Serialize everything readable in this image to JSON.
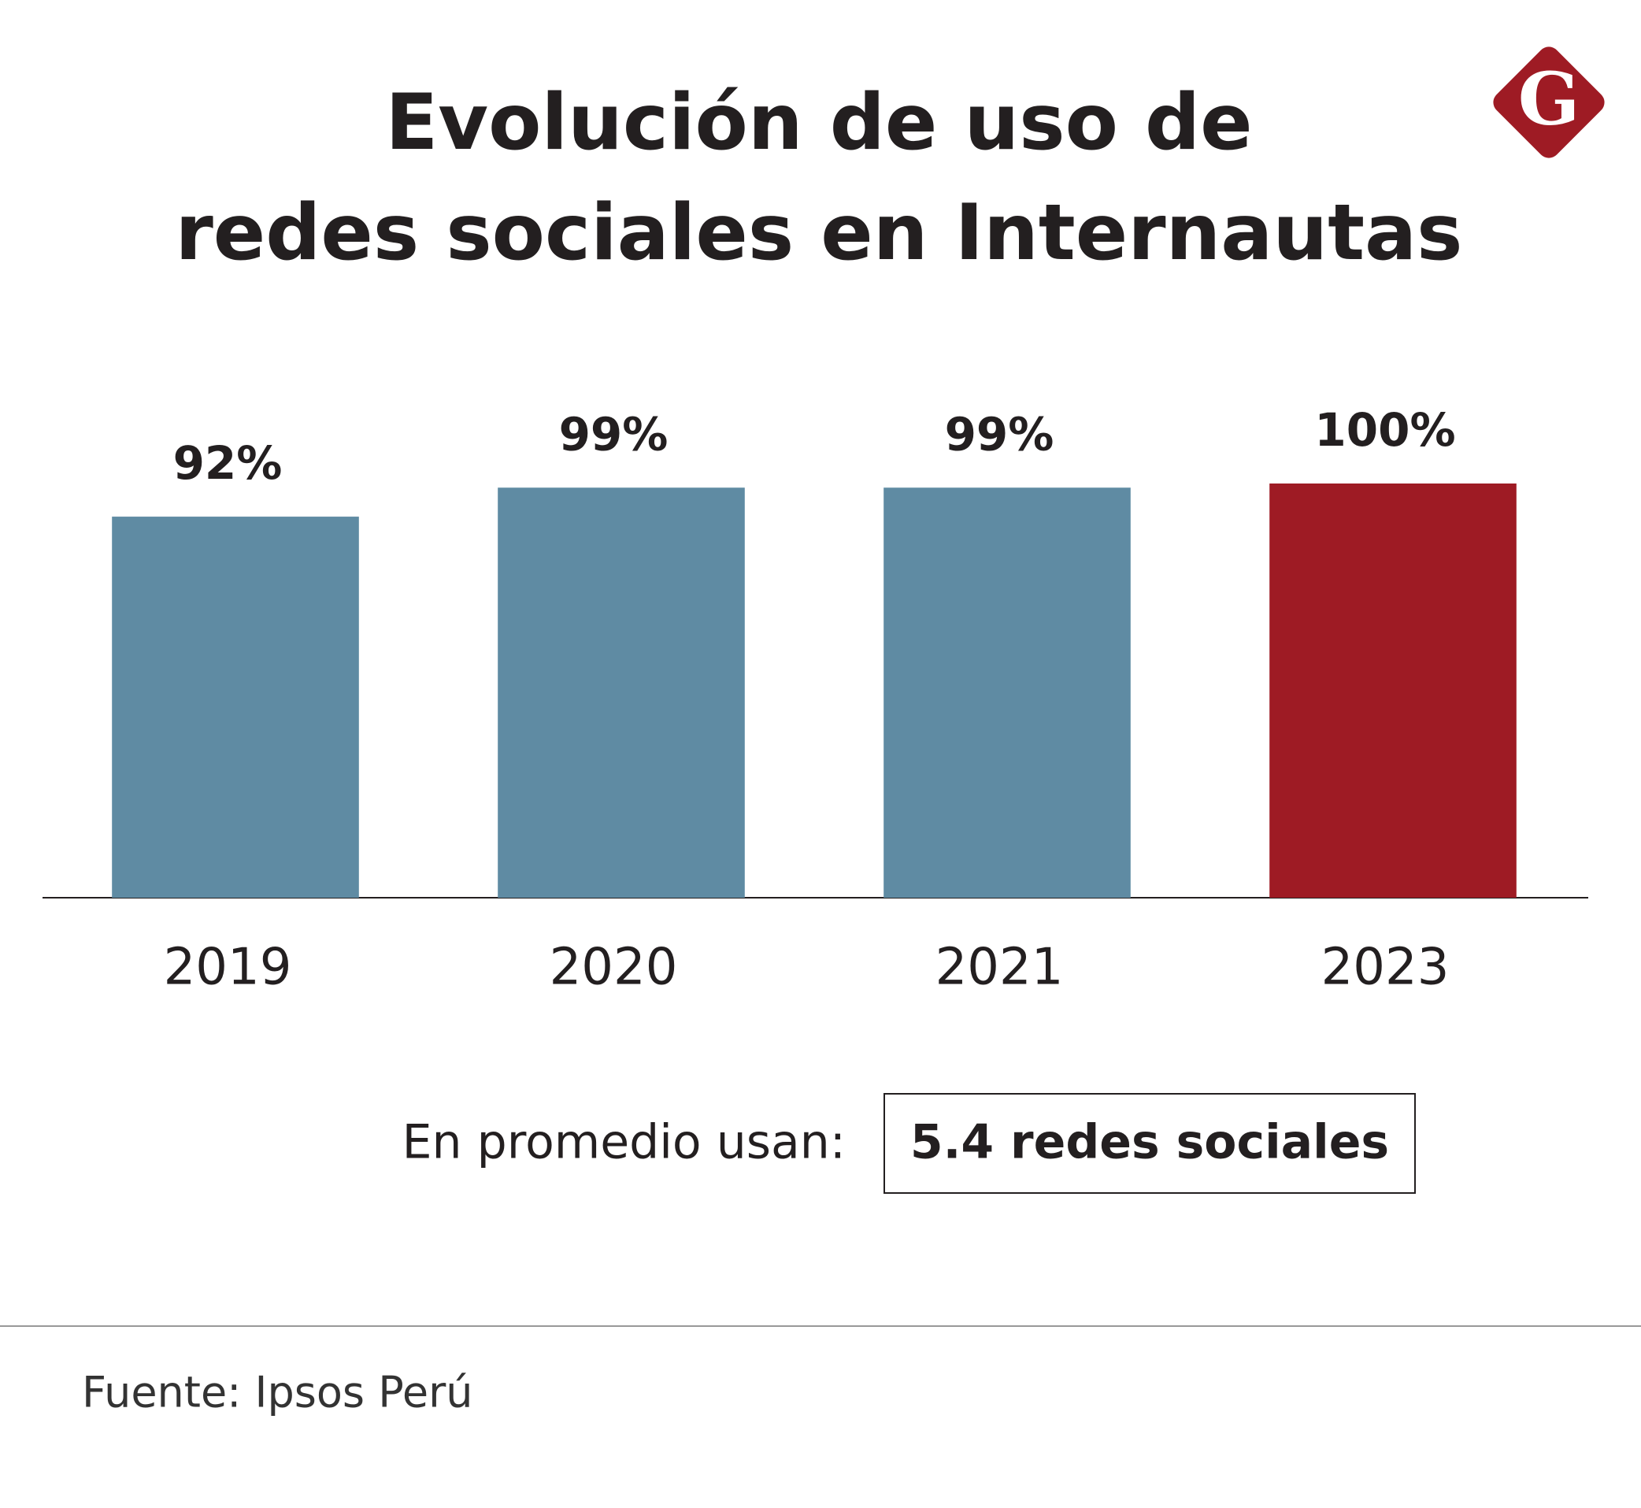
{
  "chart_data": {
    "type": "bar",
    "title": [
      "Evolución de uso de",
      "redes sociales en Internautas"
    ],
    "categories": [
      "2019",
      "2020",
      "2021",
      "2023"
    ],
    "values": [
      92,
      99,
      99,
      100
    ],
    "value_labels": [
      "92%",
      "99%",
      "99%",
      "100%"
    ],
    "colors": [
      "#5f8ba3",
      "#5f8ba3",
      "#5f8ba3",
      "#9e1b24"
    ],
    "ylim": [
      0,
      100
    ],
    "grid": false,
    "annotation": {
      "label": "En promedio usan:",
      "value": "5.4 redes sociales"
    },
    "source": "Fuente: Ipsos Perú",
    "logo": "G"
  }
}
